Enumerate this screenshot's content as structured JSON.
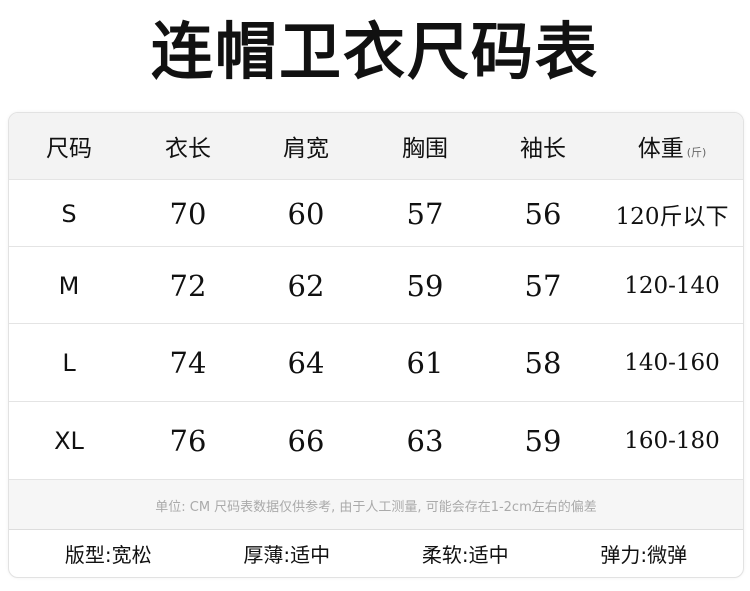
{
  "title": "连帽卫衣尺码表",
  "table": {
    "headers": [
      "尺码",
      "衣长",
      "肩宽",
      "胸围",
      "袖长",
      "体重"
    ],
    "weight_unit": "(斤)",
    "rows": [
      [
        "S",
        "70",
        "60",
        "57",
        "56",
        "120斤以下"
      ],
      [
        "M",
        "72",
        "62",
        "59",
        "57",
        "120-140"
      ],
      [
        "L",
        "74",
        "64",
        "61",
        "58",
        "140-160"
      ],
      [
        "XL",
        "76",
        "66",
        "63",
        "59",
        "160-180"
      ]
    ]
  },
  "note": "单位: CM 尺码表数据仅供参考, 由于人工测量, 可能会存在1-2cm左右的偏差",
  "attributes": [
    "版型:宽松",
    "厚薄:适中",
    "柔软:适中",
    "弹力:微弹"
  ]
}
